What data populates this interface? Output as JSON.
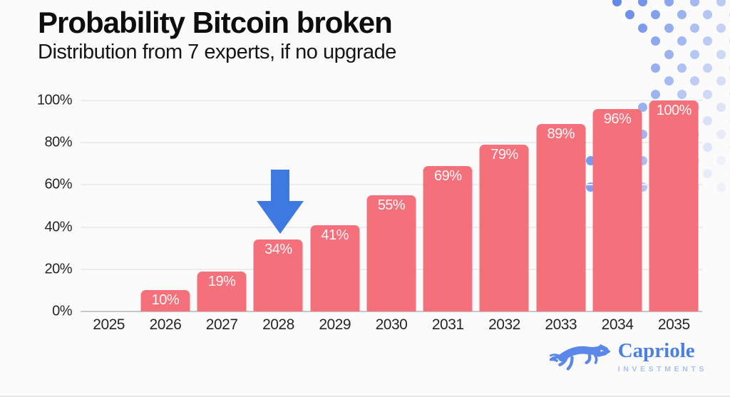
{
  "header": {
    "title": "Probability Bitcoin broken",
    "subtitle": "Distribution from 7 experts, if no upgrade"
  },
  "chart_data": {
    "type": "bar",
    "title": "Probability Bitcoin broken",
    "subtitle": "Distribution from 7 experts, if no upgrade",
    "categories": [
      "2025",
      "2026",
      "2027",
      "2028",
      "2029",
      "2030",
      "2031",
      "2032",
      "2033",
      "2034",
      "2035"
    ],
    "values": [
      0,
      10,
      19,
      34,
      41,
      55,
      69,
      79,
      89,
      96,
      100
    ],
    "bar_labels": [
      "",
      "10%",
      "19%",
      "34%",
      "41%",
      "55%",
      "69%",
      "79%",
      "89%",
      "96%",
      "100%"
    ],
    "xlabel": "",
    "ylabel": "",
    "ylim": [
      0,
      100
    ],
    "ytick_values": [
      0,
      20,
      40,
      60,
      80,
      100
    ],
    "ytick_labels": [
      "0%",
      "20%",
      "40%",
      "60%",
      "80%",
      "100%"
    ],
    "grid": true,
    "legend": false,
    "bar_color": "#f4707b",
    "annotation": {
      "shape": "down-arrow",
      "color": "#3e79e2",
      "target_category": "2028",
      "meaning": "arrow highlighting the 2028 bar"
    }
  },
  "branding": {
    "name": "Capriole",
    "subtext": "INVESTMENTS"
  },
  "colors": {
    "bar": "#f4707b",
    "arrow": "#3e79e2",
    "logo_text": "#4c7fe2",
    "logo_subtext": "#a9c1ef",
    "logo_horse": "#5b86ea",
    "dots": "#5b82e8",
    "background": "#fbfbfb"
  }
}
